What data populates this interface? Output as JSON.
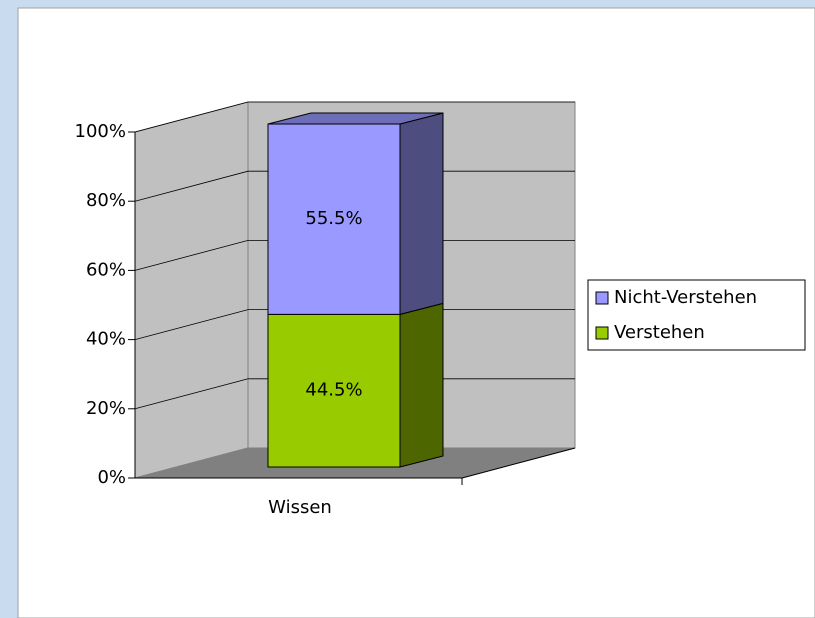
{
  "chart_data": {
    "type": "bar3d_stacked",
    "categories": [
      "Wissen"
    ],
    "series": [
      {
        "name": "Verstehen",
        "color": "#99cc00",
        "values": [
          44.5
        ],
        "value_labels": [
          "44.5%"
        ]
      },
      {
        "name": "Nicht-Verstehen",
        "color": "#9999ff",
        "values": [
          55.5
        ],
        "value_labels": [
          "55.5%"
        ]
      }
    ],
    "ylim": [
      0,
      100
    ],
    "yticks": [
      {
        "value": 0,
        "label": "0%"
      },
      {
        "value": 20,
        "label": "20%"
      },
      {
        "value": 40,
        "label": "40%"
      },
      {
        "value": 60,
        "label": "60%"
      },
      {
        "value": 80,
        "label": "80%"
      },
      {
        "value": 100,
        "label": "100%"
      }
    ],
    "grid": true,
    "legend": "right"
  }
}
